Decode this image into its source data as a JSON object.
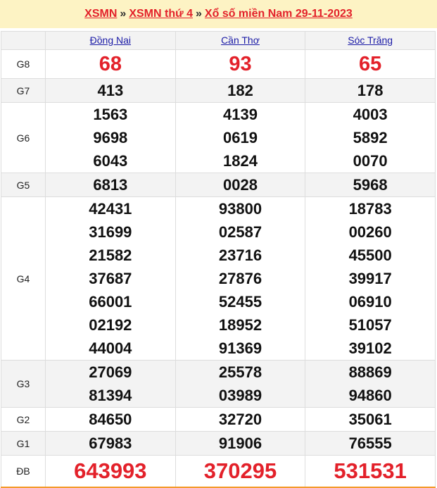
{
  "breadcrumb": {
    "home": "XSMN",
    "sep": "»",
    "day": "XSMN thứ 4",
    "current": "Xổ số miền Nam 29-11-2023"
  },
  "provinces": [
    "Đồng Nai",
    "Cần Thơ",
    "Sóc Trăng"
  ],
  "prizes": [
    {
      "label": "G8",
      "style": "big",
      "values": [
        [
          "68"
        ],
        [
          "93"
        ],
        [
          "65"
        ]
      ]
    },
    {
      "label": "G7",
      "style": "num",
      "values": [
        [
          "413"
        ],
        [
          "182"
        ],
        [
          "178"
        ]
      ]
    },
    {
      "label": "G6",
      "style": "num",
      "values": [
        [
          "1563",
          "9698",
          "6043"
        ],
        [
          "4139",
          "0619",
          "1824"
        ],
        [
          "4003",
          "5892",
          "0070"
        ]
      ]
    },
    {
      "label": "G5",
      "style": "num",
      "values": [
        [
          "6813"
        ],
        [
          "0028"
        ],
        [
          "5968"
        ]
      ]
    },
    {
      "label": "G4",
      "style": "num",
      "values": [
        [
          "42431",
          "31699",
          "21582",
          "37687",
          "66001",
          "02192",
          "44004"
        ],
        [
          "93800",
          "02587",
          "23716",
          "27876",
          "52455",
          "18952",
          "91369"
        ],
        [
          "18783",
          "00260",
          "45500",
          "39917",
          "06910",
          "51057",
          "39102"
        ]
      ]
    },
    {
      "label": "G3",
      "style": "num",
      "values": [
        [
          "27069",
          "81394"
        ],
        [
          "25578",
          "03989"
        ],
        [
          "88869",
          "94860"
        ]
      ]
    },
    {
      "label": "G2",
      "style": "num",
      "values": [
        [
          "84650"
        ],
        [
          "32720"
        ],
        [
          "35061"
        ]
      ]
    },
    {
      "label": "G1",
      "style": "num",
      "values": [
        [
          "67983"
        ],
        [
          "91906"
        ],
        [
          "76555"
        ]
      ]
    },
    {
      "label": "ĐB",
      "style": "db",
      "values": [
        [
          "643993"
        ],
        [
          "370295"
        ],
        [
          "531531"
        ]
      ]
    }
  ],
  "colors": {
    "accent": "#e3212a",
    "link": "#1a1aa6",
    "header_bg": "#fdf3c4",
    "stripe": "#f3f3f3",
    "bottom_border": "#f39a2b"
  }
}
